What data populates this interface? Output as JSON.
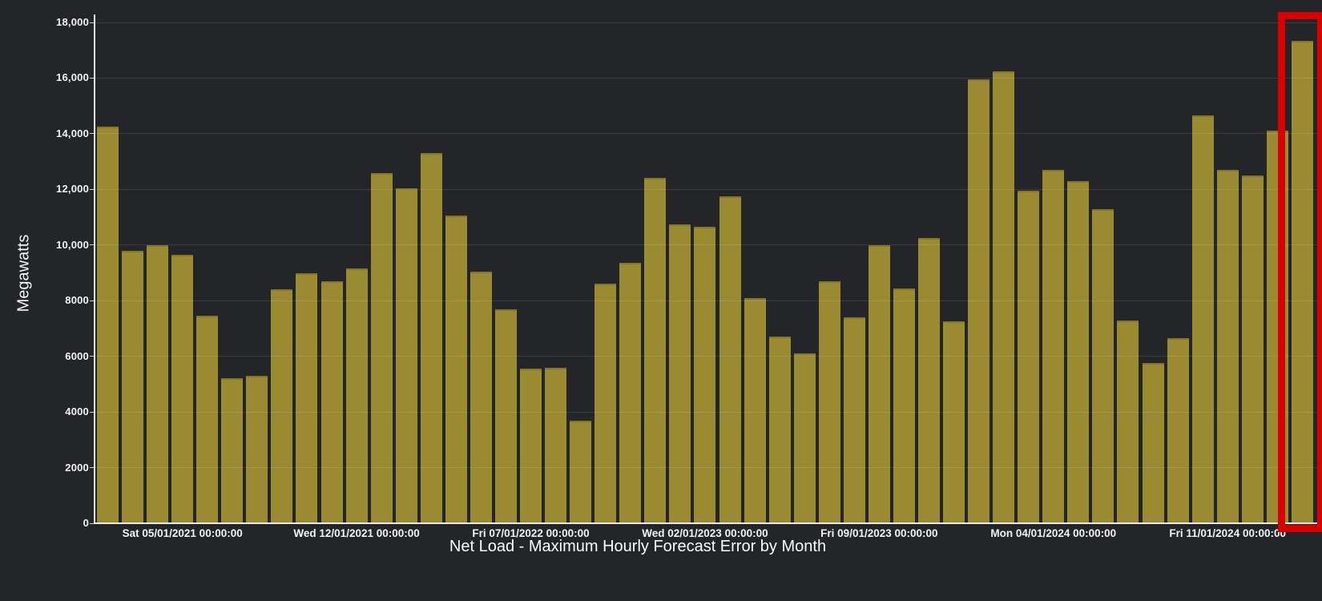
{
  "page": {
    "background": "#232529"
  },
  "chart": {
    "title": "Net Load - Maximum Hourly Forecast Error by Month",
    "y_axis_title": "Megawatts",
    "y_ticks": [
      {
        "value": 18000,
        "label": "18,000"
      },
      {
        "value": 16000,
        "label": "16,000"
      },
      {
        "value": 14000,
        "label": "14,000"
      },
      {
        "value": 12000,
        "label": "12,000"
      },
      {
        "value": 10000,
        "label": "10,000"
      },
      {
        "value": 8000,
        "label": "8000"
      },
      {
        "value": 6000,
        "label": "6000"
      },
      {
        "value": 4000,
        "label": "4000"
      },
      {
        "value": 2000,
        "label": "2000"
      },
      {
        "value": 0,
        "label": "0"
      }
    ],
    "x_ticks": [
      {
        "bar_index": 3,
        "label": "Sat 05/01/2021 00:00:00"
      },
      {
        "bar_index": 10,
        "label": "Wed 12/01/2021 00:00:00"
      },
      {
        "bar_index": 17,
        "label": "Fri 07/01/2022 00:00:00"
      },
      {
        "bar_index": 24,
        "label": "Wed 02/01/2023 00:00:00"
      },
      {
        "bar_index": 31,
        "label": "Fri 09/01/2023 00:00:00"
      },
      {
        "bar_index": 38,
        "label": "Mon 04/01/2024 00:00:00"
      },
      {
        "bar_index": 45,
        "label": "Fri 11/01/2024 00:00:00"
      }
    ],
    "colors": {
      "background": "#232529",
      "bar": "#9a8b33",
      "grid": "rgba(255,255,255,0.10)",
      "axis": "#ececec",
      "text": "#f2f2f2",
      "highlight": "#d90000"
    },
    "highlight": {
      "bar_index": 48
    }
  },
  "chart_data": {
    "type": "bar",
    "title": "Net Load - Maximum Hourly Forecast Error by Month",
    "xlabel": "",
    "ylabel": "Megawatts",
    "ylim": [
      0,
      18000
    ],
    "grid": true,
    "legend": "none",
    "bar_color": "#9a8b33",
    "highlighted_category": "2025-02",
    "highlight_style": "red rectangle outline around last bar",
    "categories": [
      "2021-02",
      "2021-03",
      "2021-04",
      "2021-05",
      "2021-06",
      "2021-07",
      "2021-08",
      "2021-09",
      "2021-10",
      "2021-11",
      "2021-12",
      "2022-01",
      "2022-02",
      "2022-03",
      "2022-04",
      "2022-05",
      "2022-06",
      "2022-07",
      "2022-08",
      "2022-09",
      "2022-10",
      "2022-11",
      "2022-12",
      "2023-01",
      "2023-02",
      "2023-03",
      "2023-04",
      "2023-05",
      "2023-06",
      "2023-07",
      "2023-08",
      "2023-09",
      "2023-10",
      "2023-11",
      "2023-12",
      "2024-01",
      "2024-02",
      "2024-03",
      "2024-04",
      "2024-05",
      "2024-06",
      "2024-07",
      "2024-08",
      "2024-09",
      "2024-10",
      "2024-11",
      "2024-12",
      "2025-01",
      "2025-02"
    ],
    "values": [
      14250,
      9800,
      10000,
      9650,
      7450,
      5200,
      5300,
      8400,
      9000,
      8700,
      9150,
      12600,
      12050,
      13300,
      11050,
      9050,
      7700,
      5550,
      5600,
      3700,
      8600,
      9350,
      12400,
      10750,
      10650,
      11750,
      8100,
      6700,
      6100,
      8700,
      7400,
      10000,
      8450,
      10250,
      7250,
      15950,
      16250,
      11950,
      12700,
      12300,
      11300,
      7300,
      5750,
      6650,
      14650,
      12700,
      12500,
      14100,
      17350
    ]
  }
}
